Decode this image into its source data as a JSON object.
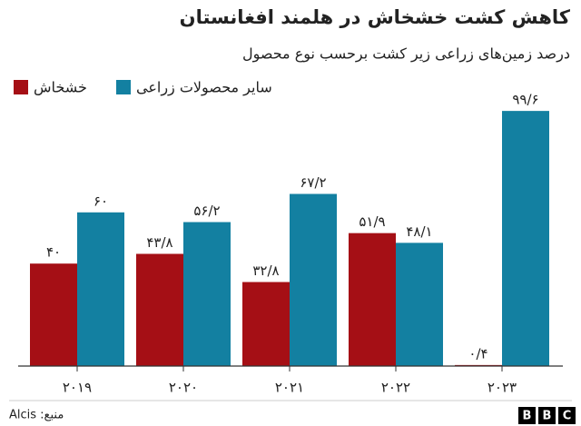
{
  "chart_data": {
    "type": "bar",
    "title": "کاهش کشت خشخاش در هلمند افغانستان",
    "subtitle": "درصد زمین‌های زراعی زیر کشت برحسب نوع محصول",
    "categories": [
      "۲۰۱۹",
      "۲۰۲۰",
      "۲۰۲۱",
      "۲۰۲۲",
      "۲۰۲۳"
    ],
    "series": [
      {
        "name": "خشخاش",
        "color": "#a50f15",
        "values": [
          40,
          43.8,
          32.8,
          51.9,
          0.4
        ],
        "value_labels": [
          "۴۰",
          "۴۳/۸",
          "۳۲/۸",
          "۵۱/۹",
          "۰/۴"
        ]
      },
      {
        "name": "سایر محصولات زراعی",
        "color": "#1380a1",
        "values": [
          60,
          56.2,
          67.2,
          48.1,
          99.6
        ],
        "value_labels": [
          "۶۰",
          "۵۶/۲",
          "۶۷/۲",
          "۴۸/۱",
          "۹۹/۶"
        ]
      }
    ],
    "ylim": [
      0,
      100
    ],
    "source": "منبع: Alcis",
    "logo": [
      "B",
      "B",
      "C"
    ]
  }
}
